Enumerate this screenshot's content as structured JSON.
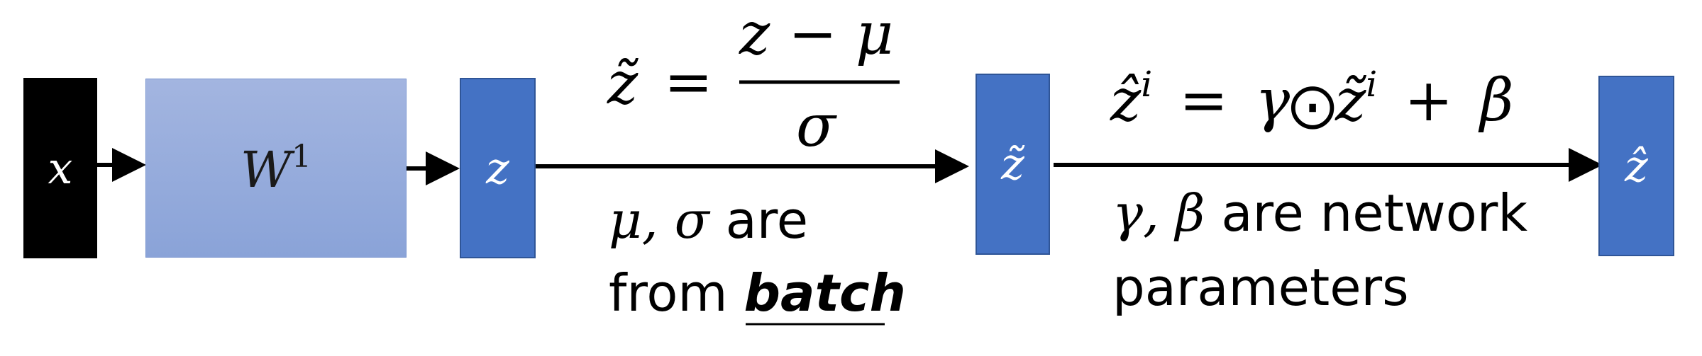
{
  "nodes": {
    "x": {
      "label": "x",
      "color": "#000000"
    },
    "w": {
      "label": "W",
      "sup": "1",
      "color": "#8FA8DC"
    },
    "z": {
      "label": "z",
      "color": "#4472C4"
    },
    "ztilde": {
      "label": "z̃",
      "color": "#4472C4"
    },
    "zhat": {
      "label": "ẑ",
      "color": "#4472C4"
    }
  },
  "formula1": {
    "lhs": "z̃",
    "eq": "=",
    "numerator": "z − μ",
    "denominator": "σ"
  },
  "formula2": {
    "lhs": "ẑ",
    "lhs_sup": "i",
    "eq": "=",
    "gamma": "γ",
    "odot": "⨀",
    "ztilde": "z̃",
    "ztilde_sup": "i",
    "plus": "+",
    "beta": "β"
  },
  "note1": {
    "mu_sigma": "μ, σ",
    "are": " are",
    "from": "from ",
    "batch": "batch"
  },
  "note2": {
    "gamma_beta": "γ, β",
    "line1_rest": " are network",
    "line2": "parameters"
  }
}
